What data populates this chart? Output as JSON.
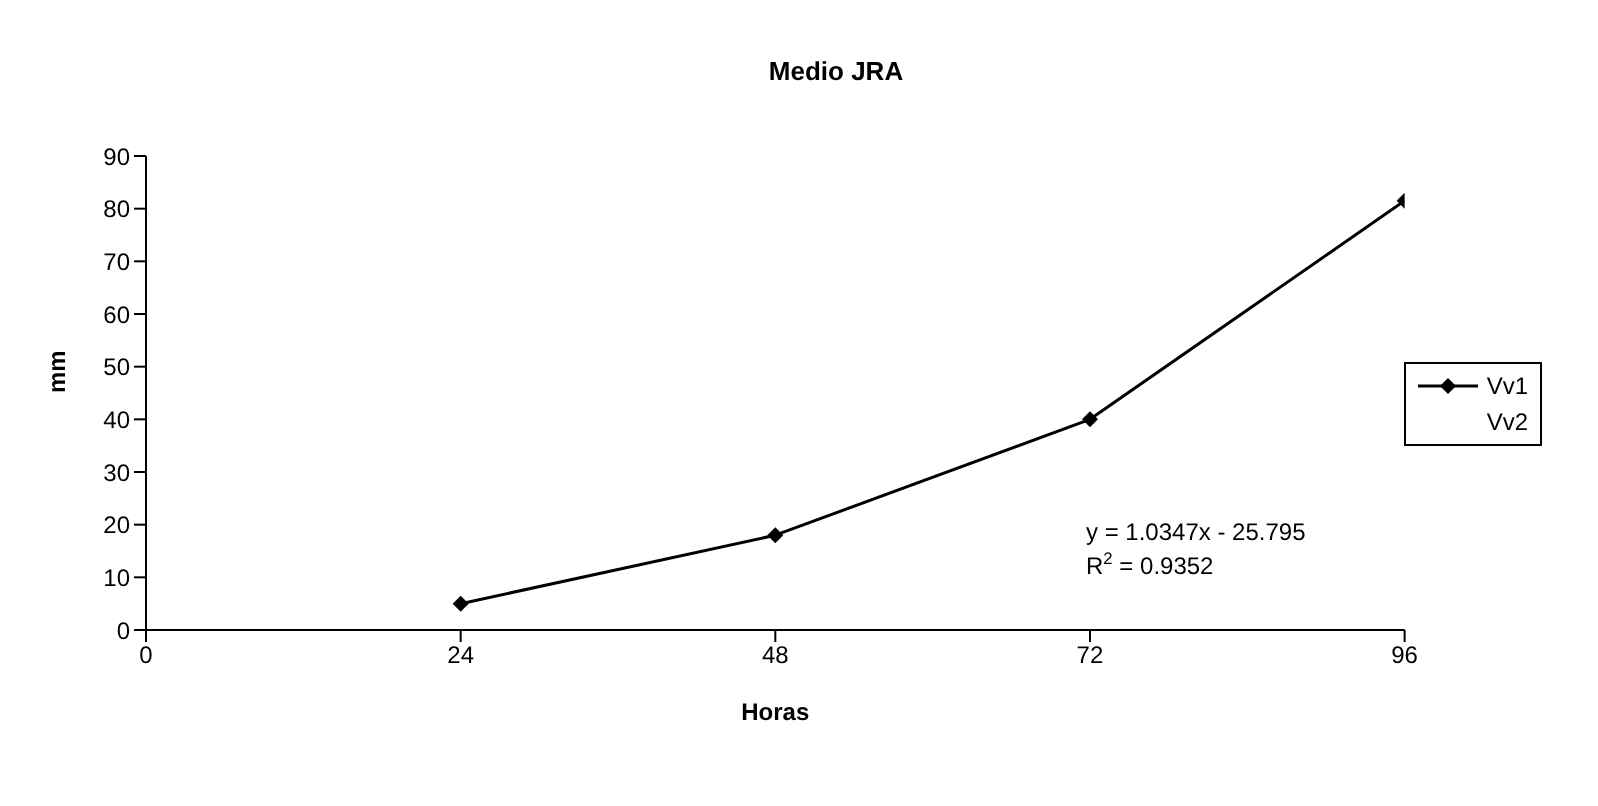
{
  "chart_data": {
    "type": "line",
    "title": "Medio JRA",
    "xlabel": "Horas",
    "ylabel": "mm",
    "x": [
      24,
      48,
      72,
      96
    ],
    "series": [
      {
        "name": "Vv1",
        "color": "#000000",
        "values": [
          5,
          18,
          40,
          81.5
        ]
      },
      {
        "name": "Vv2",
        "values": [
          null,
          null,
          null,
          null
        ]
      }
    ],
    "xlim": [
      0,
      96
    ],
    "xticks": [
      0,
      24,
      48,
      72,
      96
    ],
    "ylim": [
      0,
      90
    ],
    "yticks": [
      0,
      10,
      20,
      30,
      40,
      50,
      60,
      70,
      80,
      90
    ],
    "annotations": [
      "y = 1.0347x - 25.795",
      "R$^{2}$ = 0.9352"
    ],
    "grid": false,
    "legend": "right",
    "marker": "diamond",
    "line_style": "solid"
  }
}
